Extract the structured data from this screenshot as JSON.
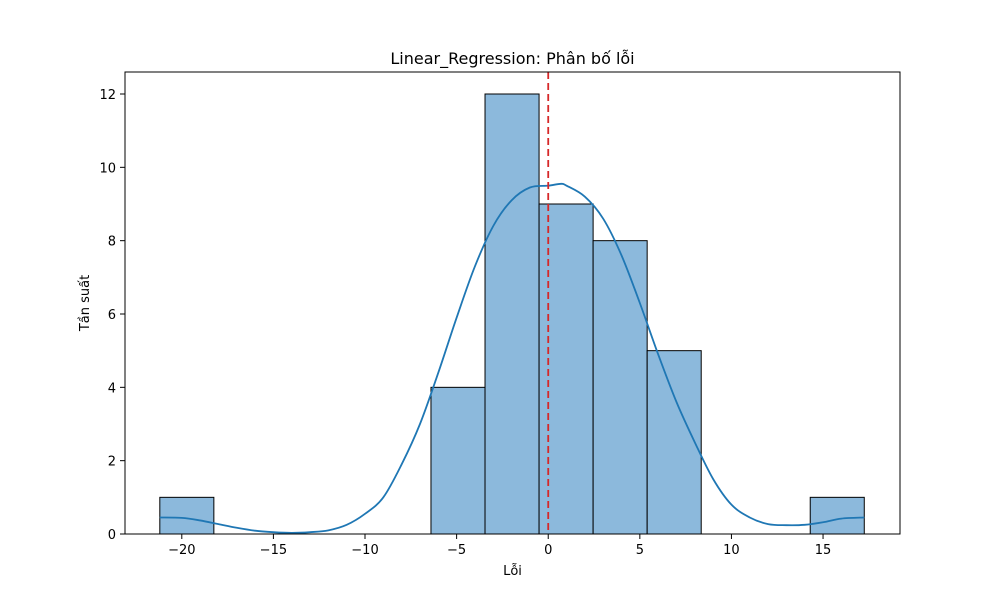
{
  "chart_data": {
    "type": "histogram",
    "title": "Linear_Regression: Phân bố lỗi",
    "xlabel": "Lỗi",
    "ylabel": "Tần suất",
    "xlim": [
      -23.1,
      19.2
    ],
    "ylim": [
      0,
      12.6
    ],
    "xticks": [
      -20,
      -15,
      -10,
      -5,
      0,
      5,
      10,
      15
    ],
    "xtick_labels": [
      "−20",
      "−15",
      "−10",
      "−5",
      "0",
      "5",
      "10",
      "15"
    ],
    "yticks": [
      0,
      2,
      4,
      6,
      8,
      10,
      12
    ],
    "ytick_labels": [
      "0",
      "2",
      "4",
      "6",
      "8",
      "10",
      "12"
    ],
    "bins": [
      {
        "x0": -21.2,
        "x1": -18.25,
        "count": 1
      },
      {
        "x0": -18.25,
        "x1": -15.3,
        "count": 0
      },
      {
        "x0": -15.3,
        "x1": -12.35,
        "count": 0
      },
      {
        "x0": -12.35,
        "x1": -9.4,
        "count": 0
      },
      {
        "x0": -9.4,
        "x1": -6.4,
        "count": 0
      },
      {
        "x0": -6.4,
        "x1": -3.45,
        "count": 4
      },
      {
        "x0": -3.45,
        "x1": -0.5,
        "count": 12
      },
      {
        "x0": -0.5,
        "x1": 2.45,
        "count": 9
      },
      {
        "x0": 2.45,
        "x1": 5.4,
        "count": 8
      },
      {
        "x0": 5.4,
        "x1": 8.35,
        "count": 5
      },
      {
        "x0": 8.35,
        "x1": 11.3,
        "count": 0
      },
      {
        "x0": 11.3,
        "x1": 14.3,
        "count": 0
      },
      {
        "x0": 14.3,
        "x1": 17.25,
        "count": 1
      }
    ],
    "kde": {
      "x": [
        -21.2,
        -20,
        -19,
        -18,
        -17,
        -16,
        -15,
        -14,
        -13,
        -12,
        -11,
        -10,
        -9,
        -8,
        -7,
        -6,
        -5,
        -4,
        -3,
        -2,
        -1,
        0,
        0.7,
        1,
        2,
        3,
        4,
        5,
        6,
        7,
        8,
        9,
        10,
        11,
        12,
        13,
        14,
        15,
        16,
        17.25
      ],
      "y": [
        0.45,
        0.44,
        0.37,
        0.27,
        0.17,
        0.09,
        0.05,
        0.03,
        0.05,
        0.1,
        0.25,
        0.55,
        1.0,
        1.9,
        3.0,
        4.4,
        5.9,
        7.3,
        8.4,
        9.1,
        9.45,
        9.5,
        9.55,
        9.5,
        9.2,
        8.6,
        7.6,
        6.3,
        4.9,
        3.6,
        2.5,
        1.5,
        0.8,
        0.45,
        0.27,
        0.24,
        0.25,
        0.32,
        0.42,
        0.45
      ]
    },
    "reference_line": {
      "x": 0,
      "style": "dashed",
      "color": "#d62728"
    },
    "colors": {
      "bar_fill": "#8cb9dc",
      "bar_edge": "#000000",
      "kde": "#1f77b4"
    },
    "grid": false
  }
}
